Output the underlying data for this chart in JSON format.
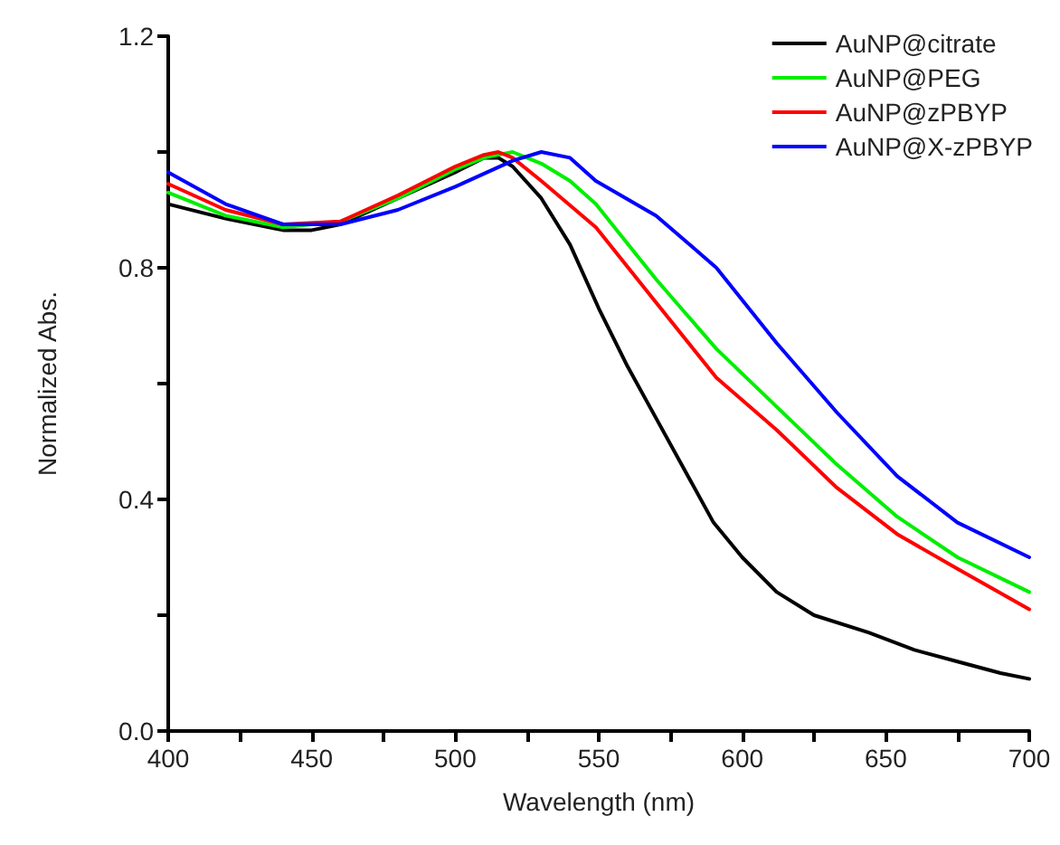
{
  "chart_data": {
    "type": "line",
    "xlabel": "Wavelength (nm)",
    "ylabel": "Normalized Abs.",
    "xlim": [
      400,
      700
    ],
    "ylim": [
      0,
      1.2
    ],
    "xticks": [
      400,
      {
        "value": 425,
        "label": null
      },
      450,
      {
        "value": 475,
        "label": null
      },
      500,
      {
        "value": 525,
        "label": null
      },
      550,
      {
        "value": 575,
        "label": null
      },
      600,
      {
        "value": 625,
        "label": null
      },
      650,
      {
        "value": 675,
        "label": null
      },
      700
    ],
    "yticks": [
      {
        "value": 0,
        "label": "0.0"
      },
      {
        "value": 0.2,
        "label": null
      },
      0.4,
      {
        "value": 0.6,
        "label": null
      },
      0.8,
      {
        "value": 1.0,
        "label": null
      },
      1.2
    ],
    "grid": false,
    "legend": "top right",
    "marker": "none",
    "line_style": "solid",
    "series": [
      {
        "name": "AuNP@citrate",
        "color": "#000000",
        "x": [
          400,
          420,
          440,
          450,
          460,
          480,
          500,
          510,
          515,
          520,
          530,
          540,
          550,
          560,
          570,
          580,
          590,
          600,
          612,
          625,
          644,
          660,
          675,
          690,
          700
        ],
        "values": [
          0.91,
          0.885,
          0.865,
          0.865,
          0.875,
          0.92,
          0.965,
          0.99,
          0.99,
          0.975,
          0.92,
          0.84,
          0.73,
          0.63,
          0.54,
          0.45,
          0.36,
          0.3,
          0.24,
          0.2,
          0.17,
          0.14,
          0.12,
          0.1,
          0.09
        ]
      },
      {
        "name": "AuNP@PEG",
        "color": "#00ee00",
        "x": [
          400,
          420,
          440,
          460,
          480,
          500,
          510,
          520,
          530,
          540,
          549,
          570,
          591,
          612,
          633,
          654,
          675,
          700
        ],
        "values": [
          0.93,
          0.89,
          0.87,
          0.88,
          0.92,
          0.97,
          0.99,
          1.0,
          0.98,
          0.95,
          0.91,
          0.78,
          0.66,
          0.56,
          0.46,
          0.37,
          0.3,
          0.24
        ]
      },
      {
        "name": "AuNP@zPBYP",
        "color": "#ff0000",
        "x": [
          400,
          420,
          440,
          460,
          480,
          500,
          510,
          515,
          520,
          530,
          549,
          570,
          591,
          612,
          633,
          654,
          675,
          700
        ],
        "values": [
          0.945,
          0.9,
          0.875,
          0.88,
          0.925,
          0.975,
          0.995,
          1.0,
          0.99,
          0.95,
          0.87,
          0.74,
          0.61,
          0.52,
          0.42,
          0.34,
          0.28,
          0.21
        ]
      },
      {
        "name": "AuNP@X-zPBYP",
        "color": "#0000ff",
        "x": [
          400,
          420,
          440,
          460,
          480,
          500,
          520,
          530,
          540,
          549,
          570,
          591,
          612,
          633,
          654,
          675,
          700
        ],
        "values": [
          0.965,
          0.91,
          0.875,
          0.875,
          0.9,
          0.94,
          0.985,
          1.0,
          0.99,
          0.95,
          0.89,
          0.8,
          0.67,
          0.55,
          0.44,
          0.36,
          0.3
        ]
      }
    ]
  }
}
